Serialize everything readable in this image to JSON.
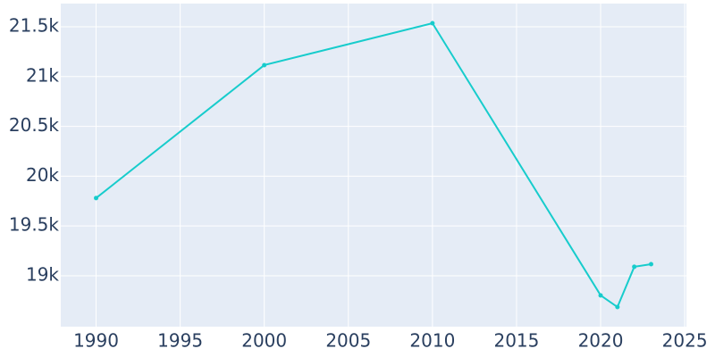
{
  "chart_data": {
    "type": "line",
    "x": [
      1990,
      2000,
      2010,
      2020,
      2021,
      2022,
      2023
    ],
    "series": [
      {
        "color": "#17cccc",
        "values": [
          19780,
          21115,
          21536,
          18803,
          18686,
          19090,
          19116
        ]
      }
    ],
    "xlim": [
      1987.9,
      2025.1
    ],
    "xticks": [
      1990,
      1995,
      2000,
      2005,
      2010,
      2015,
      2020,
      2025
    ],
    "ylim": [
      18489,
      21733
    ],
    "yticks": [
      {
        "value": 19000,
        "label": "19k"
      },
      {
        "value": 19500,
        "label": "19.5k"
      },
      {
        "value": 20000,
        "label": "20k"
      },
      {
        "value": 20500,
        "label": "20.5k"
      },
      {
        "value": 21000,
        "label": "21k"
      },
      {
        "value": 21500,
        "label": "21.5k"
      }
    ],
    "grid": true
  }
}
